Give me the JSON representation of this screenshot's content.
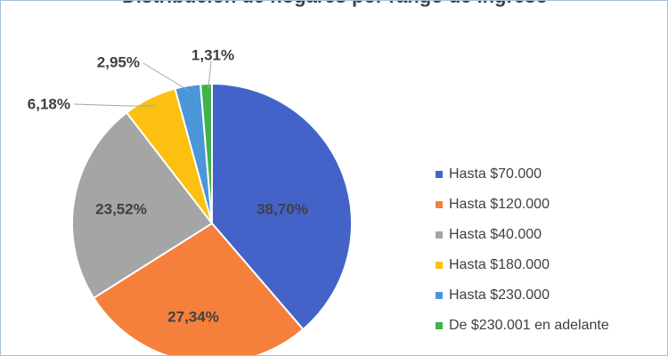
{
  "chart_data": {
    "type": "pie",
    "title": "",
    "title_partial_visible": "Distribución de hogares por rango de ingreso",
    "series": [
      {
        "name": "Hasta $70.000",
        "value": 38.7,
        "label": "38,70%",
        "color": "#4363c8"
      },
      {
        "name": "Hasta $120.000",
        "value": 27.34,
        "label": "27,34%",
        "color": "#f4803c"
      },
      {
        "name": "Hasta $40.000",
        "value": 23.52,
        "label": "23,52%",
        "color": "#a5a5a5"
      },
      {
        "name": "Hasta $180.000",
        "value": 6.18,
        "label": "6,18%",
        "color": "#fbc010"
      },
      {
        "name": "Hasta $230.000",
        "value": 2.95,
        "label": "2,95%",
        "color": "#4a96d8"
      },
      {
        "name": "De $230.001 en adelante",
        "value": 1.31,
        "label": "1,31%",
        "color": "#3fb34a"
      }
    ],
    "start_angle": "12 o'clock",
    "direction": "clockwise",
    "legend_position": "right"
  }
}
